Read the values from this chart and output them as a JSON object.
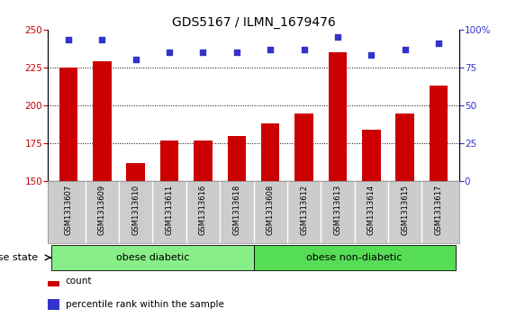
{
  "title": "GDS5167 / ILMN_1679476",
  "categories": [
    "GSM1313607",
    "GSM1313609",
    "GSM1313610",
    "GSM1313611",
    "GSM1313616",
    "GSM1313618",
    "GSM1313608",
    "GSM1313612",
    "GSM1313613",
    "GSM1313614",
    "GSM1313615",
    "GSM1313617"
  ],
  "bar_values": [
    225,
    229,
    162,
    177,
    177,
    180,
    188,
    195,
    235,
    184,
    195,
    213
  ],
  "percentile_values": [
    93,
    93,
    80,
    85,
    85,
    85,
    87,
    87,
    95,
    83,
    87,
    91
  ],
  "bar_color": "#cc0000",
  "dot_color": "#3333cc",
  "ylim_left": [
    150,
    250
  ],
  "ylim_right": [
    0,
    100
  ],
  "yticks_left": [
    150,
    175,
    200,
    225,
    250
  ],
  "yticks_right": [
    0,
    25,
    50,
    75,
    100
  ],
  "groups": [
    {
      "label": "obese diabetic",
      "start": 0,
      "end": 6,
      "color": "#88ee88"
    },
    {
      "label": "obese non-diabetic",
      "start": 6,
      "end": 12,
      "color": "#55dd55"
    }
  ],
  "disease_state_label": "disease state",
  "legend_items": [
    {
      "label": "count",
      "color": "#cc0000"
    },
    {
      "label": "percentile rank within the sample",
      "color": "#3333cc"
    }
  ],
  "background_color": "#ffffff",
  "tick_label_bg": "#cccccc",
  "title_fontsize": 10,
  "tick_fontsize": 7.5,
  "label_fontsize": 7
}
